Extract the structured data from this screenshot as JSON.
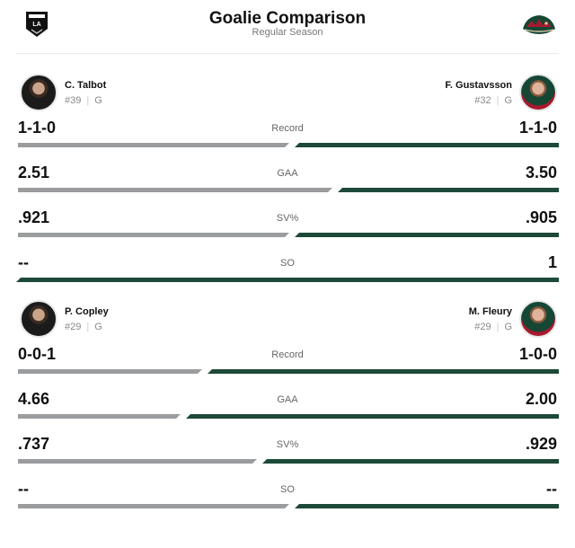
{
  "header": {
    "title": "Goalie Comparison",
    "subtitle": "Regular Season",
    "left_team_logo": "la-kings-logo",
    "right_team_logo": "minnesota-wild-logo"
  },
  "colors": {
    "left_bar": "#9a9c9e",
    "right_bar": "#1d4a38"
  },
  "matchups": [
    {
      "left": {
        "name": "C. Talbot",
        "number": "#39",
        "position": "G"
      },
      "right": {
        "name": "F. Gustavsson",
        "number": "#32",
        "position": "G"
      },
      "stats": [
        {
          "label": "Record",
          "left": "1-1-0",
          "right": "1-1-0",
          "left_share": 0.5
        },
        {
          "label": "GAA",
          "left": "2.51",
          "right": "3.50",
          "left_share": 0.58
        },
        {
          "label": "SV%",
          "left": ".921",
          "right": ".905",
          "left_share": 0.5
        },
        {
          "label": "SO",
          "left": "--",
          "right": "1",
          "left_share": 0.0
        }
      ]
    },
    {
      "left": {
        "name": "P. Copley",
        "number": "#29",
        "position": "G"
      },
      "right": {
        "name": "M. Fleury",
        "number": "#29",
        "position": "G"
      },
      "stats": [
        {
          "label": "Record",
          "left": "0-0-1",
          "right": "1-0-0",
          "left_share": 0.34
        },
        {
          "label": "GAA",
          "left": "4.66",
          "right": "2.00",
          "left_share": 0.3
        },
        {
          "label": "SV%",
          "left": ".737",
          "right": ".929",
          "left_share": 0.44
        },
        {
          "label": "SO",
          "left": "--",
          "right": "--",
          "left_share": 0.5
        }
      ]
    }
  ]
}
